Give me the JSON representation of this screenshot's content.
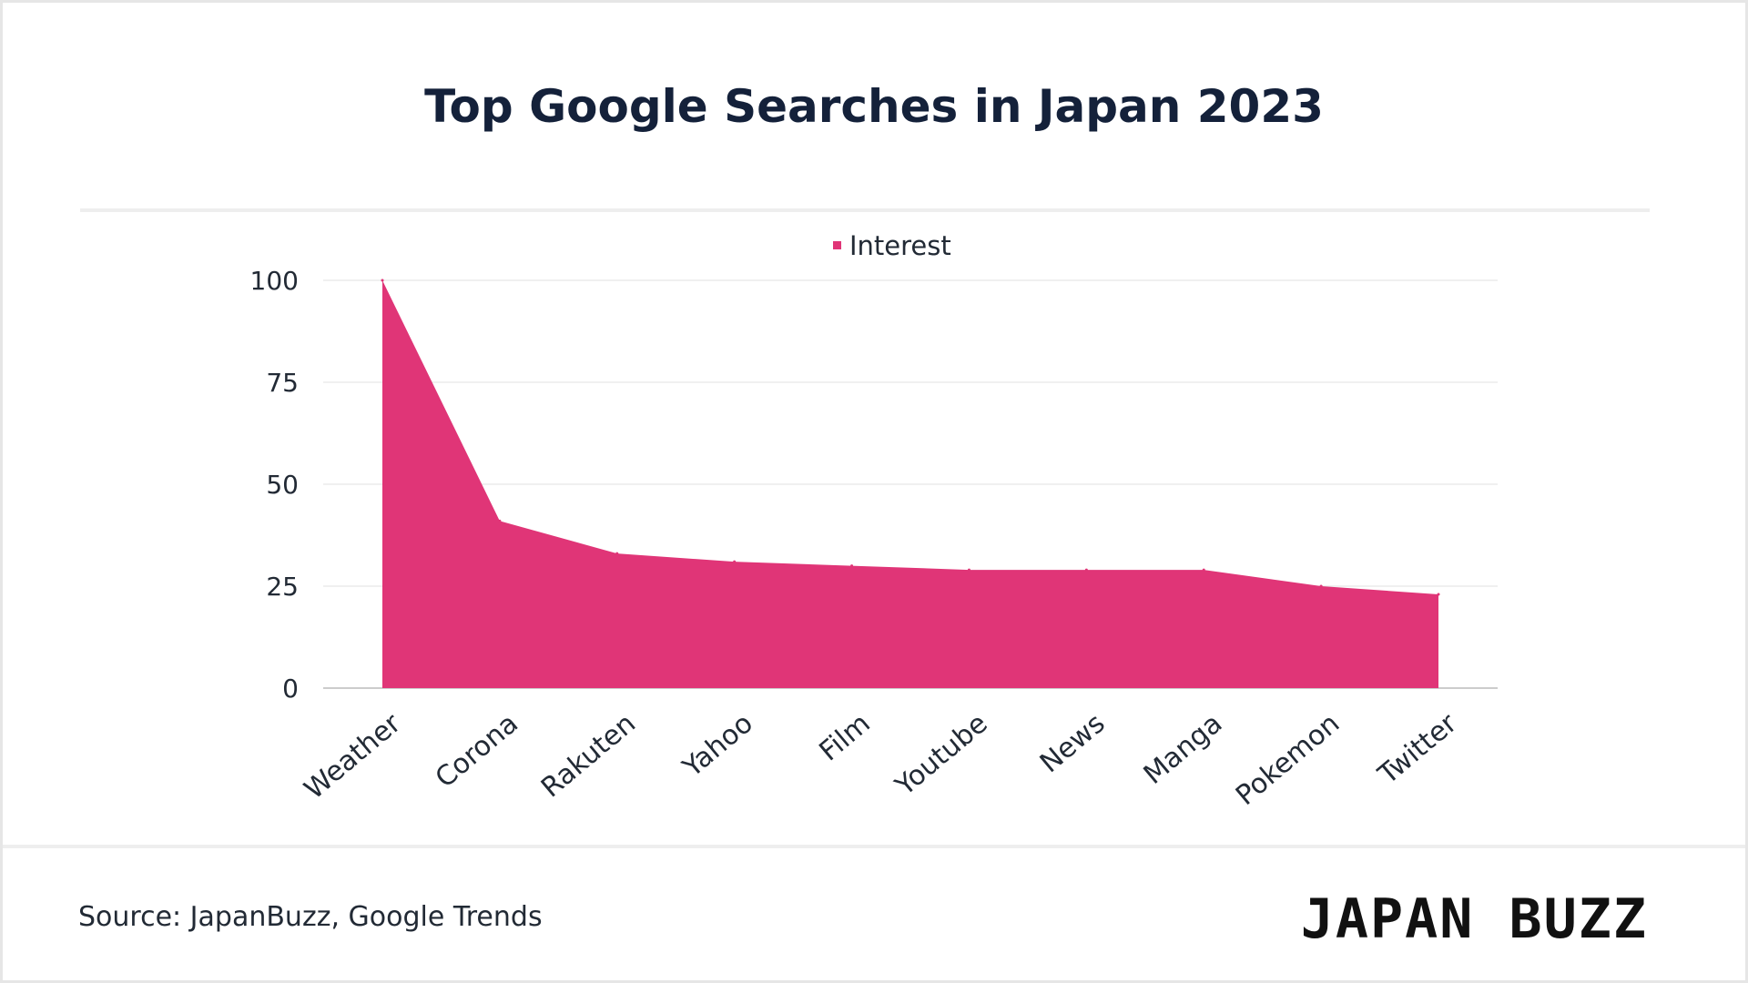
{
  "title": "Top Google Searches in Japan 2023",
  "source": "Source: JapanBuzz, Google Trends",
  "logo_text": "JAPAN BUZZ",
  "colors": {
    "series": "#e03577",
    "grid": "#e6e6e6",
    "axis": "#cccccc",
    "text": "#222a35"
  },
  "chart_data": {
    "type": "area",
    "categories": [
      "Weather",
      "Corona",
      "Rakuten",
      "Yahoo",
      "Film",
      "Youtube",
      "News",
      "Manga",
      "Pokemon",
      "Twitter"
    ],
    "series": [
      {
        "name": "Interest",
        "values": [
          100,
          41,
          33,
          31,
          30,
          29,
          29,
          29,
          25,
          23
        ]
      }
    ],
    "ylim": [
      0,
      100
    ],
    "yticks": [
      0,
      25,
      50,
      75,
      100
    ],
    "grid": true,
    "legend": "top-center",
    "xlabel": "",
    "ylabel": ""
  }
}
